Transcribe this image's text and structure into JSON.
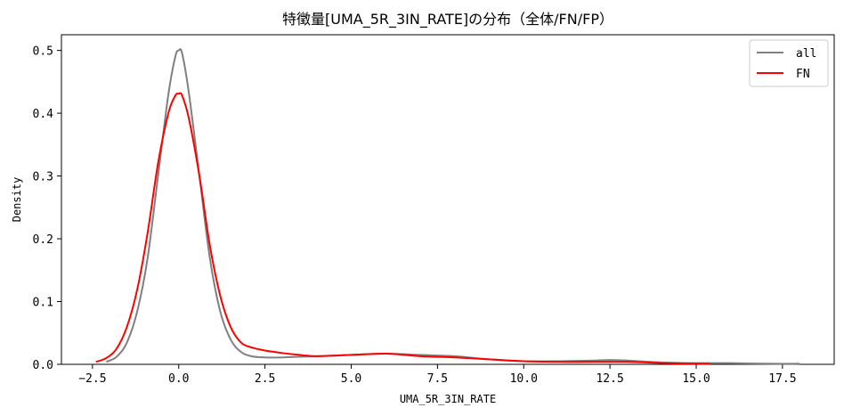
{
  "chart_data": {
    "type": "line",
    "title": "特徴量[UMA_5R_3IN_RATE]の分布（全体/FN/FP）",
    "xlabel": "UMA_5R_3IN_RATE",
    "ylabel": "Density",
    "xlim": [
      -3.4,
      19.0
    ],
    "ylim": [
      0,
      0.525
    ],
    "xticks": [
      -2.5,
      0.0,
      2.5,
      5.0,
      7.5,
      10.0,
      12.5,
      15.0,
      17.5
    ],
    "xtick_labels": [
      "−2.5",
      "0.0",
      "2.5",
      "5.0",
      "7.5",
      "10.0",
      "12.5",
      "15.0",
      "17.5"
    ],
    "yticks": [
      0.0,
      0.1,
      0.2,
      0.3,
      0.4,
      0.5
    ],
    "ytick_labels": [
      "0.0",
      "0.1",
      "0.2",
      "0.3",
      "0.4",
      "0.5"
    ],
    "grid": false,
    "legend": "top-right",
    "series": [
      {
        "name": "all",
        "color": "#808080",
        "x": [
          -2.1,
          -1.8,
          -1.5,
          -1.2,
          -0.9,
          -0.6,
          -0.3,
          -0.1,
          0.0,
          0.1,
          0.3,
          0.6,
          0.9,
          1.2,
          1.5,
          1.8,
          2.1,
          2.5,
          3.0,
          3.5,
          4.0,
          5.0,
          6.0,
          7.0,
          8.0,
          9.0,
          10.0,
          11.0,
          12.0,
          12.5,
          13.0,
          14.0,
          15.0,
          16.0,
          17.0,
          18.0
        ],
        "y": [
          0.004,
          0.012,
          0.035,
          0.085,
          0.17,
          0.3,
          0.43,
          0.49,
          0.5,
          0.495,
          0.43,
          0.3,
          0.17,
          0.085,
          0.04,
          0.02,
          0.013,
          0.011,
          0.011,
          0.012,
          0.013,
          0.015,
          0.017,
          0.015,
          0.013,
          0.008,
          0.005,
          0.005,
          0.006,
          0.007,
          0.006,
          0.003,
          0.002,
          0.002,
          0.001,
          0.001
        ]
      },
      {
        "name": "FN",
        "color": "#ff0000",
        "x": [
          -2.4,
          -2.1,
          -1.8,
          -1.5,
          -1.2,
          -0.9,
          -0.6,
          -0.3,
          -0.1,
          0.0,
          0.1,
          0.3,
          0.6,
          0.9,
          1.2,
          1.5,
          1.8,
          2.1,
          2.5,
          3.0,
          3.5,
          4.0,
          5.0,
          6.0,
          7.0,
          8.0,
          9.0,
          10.0,
          11.0,
          12.0,
          13.0,
          14.0,
          15.0,
          15.4
        ],
        "y": [
          0.004,
          0.01,
          0.025,
          0.06,
          0.12,
          0.21,
          0.32,
          0.4,
          0.428,
          0.431,
          0.428,
          0.39,
          0.3,
          0.19,
          0.11,
          0.06,
          0.035,
          0.027,
          0.022,
          0.018,
          0.015,
          0.013,
          0.015,
          0.017,
          0.013,
          0.011,
          0.008,
          0.005,
          0.004,
          0.004,
          0.004,
          0.002,
          0.001,
          0.001
        ]
      }
    ]
  }
}
